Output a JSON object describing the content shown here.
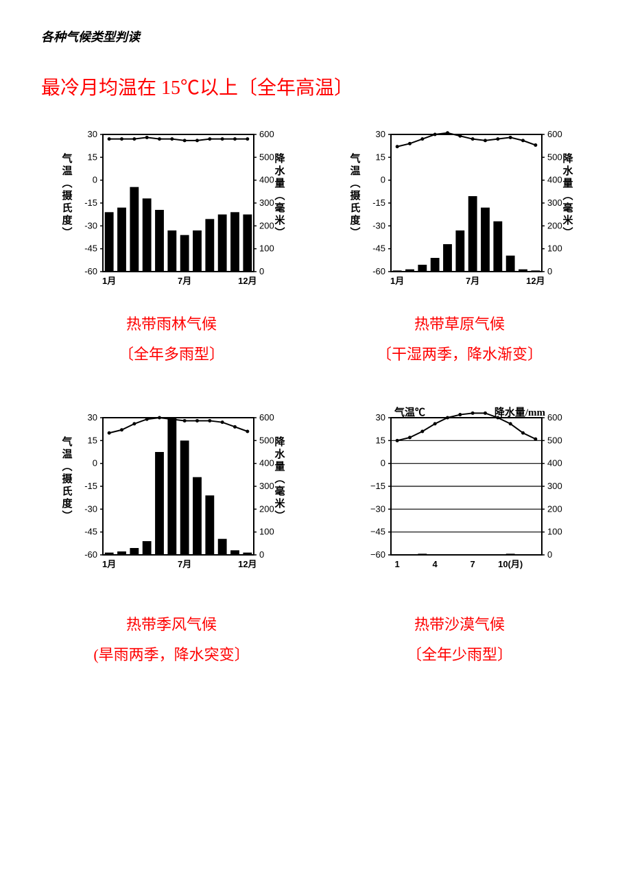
{
  "doc_title": "各种气候类型判读",
  "section_heading": "最冷月均温在 15℃以上〔全年高温〕",
  "axis": {
    "temp_label_chars": [
      "气",
      "温",
      "︵",
      "摄",
      "氏",
      "度",
      "︶"
    ],
    "precip_label_chars": [
      "降",
      "水",
      "量",
      "︵",
      "毫",
      "米",
      "︶"
    ],
    "temp_ticks": [
      30,
      15,
      0,
      -15,
      -30,
      -45,
      -60
    ],
    "precip_ticks": [
      600,
      500,
      400,
      300,
      200,
      100,
      0
    ],
    "month_ticks_a": [
      "1月",
      "7月",
      "12月"
    ],
    "month_ticks_d": [
      "1",
      "4",
      "7",
      "10(月)"
    ]
  },
  "chart4_labels": {
    "temp": "气温℃",
    "precip": "降水量/mm"
  },
  "charts": [
    {
      "title": "热带雨林气候",
      "subtitle": "〔全年多雨型〕",
      "temp": [
        27,
        27,
        27,
        28,
        27,
        27,
        26,
        26,
        27,
        27,
        27,
        27
      ],
      "precip": [
        260,
        280,
        370,
        320,
        270,
        180,
        160,
        180,
        230,
        250,
        260,
        250
      ],
      "bar_color": "#000000",
      "line_color": "#000000",
      "bg": "#ffffff",
      "border": "#000000"
    },
    {
      "title": "热带草原气候",
      "subtitle": "〔干湿两季，降水渐变〕",
      "temp": [
        22,
        24,
        27,
        30,
        31,
        29,
        27,
        26,
        27,
        28,
        26,
        23
      ],
      "precip": [
        5,
        10,
        30,
        60,
        120,
        180,
        330,
        280,
        220,
        70,
        10,
        5
      ],
      "bar_color": "#000000",
      "line_color": "#000000",
      "bg": "#ffffff",
      "border": "#000000"
    },
    {
      "title": "热带季风气候",
      "subtitle": "(旱雨两季，降水突变〕",
      "temp": [
        20,
        22,
        26,
        29,
        30,
        29,
        28,
        28,
        28,
        27,
        24,
        21
      ],
      "precip": [
        10,
        15,
        30,
        60,
        450,
        600,
        500,
        340,
        260,
        70,
        20,
        10
      ],
      "bar_color": "#000000",
      "line_color": "#000000",
      "bg": "#ffffff",
      "border": "#000000"
    },
    {
      "title": "热带沙漠气候",
      "subtitle": "〔全年少雨型〕",
      "temp": [
        15,
        17,
        21,
        26,
        30,
        32,
        33,
        33,
        30,
        26,
        20,
        16
      ],
      "precip": [
        0,
        0,
        5,
        3,
        0,
        0,
        0,
        0,
        3,
        5,
        0,
        0
      ],
      "bar_color": "#000000",
      "line_color": "#000000",
      "bg": "#ffffff",
      "border": "#000000"
    }
  ]
}
